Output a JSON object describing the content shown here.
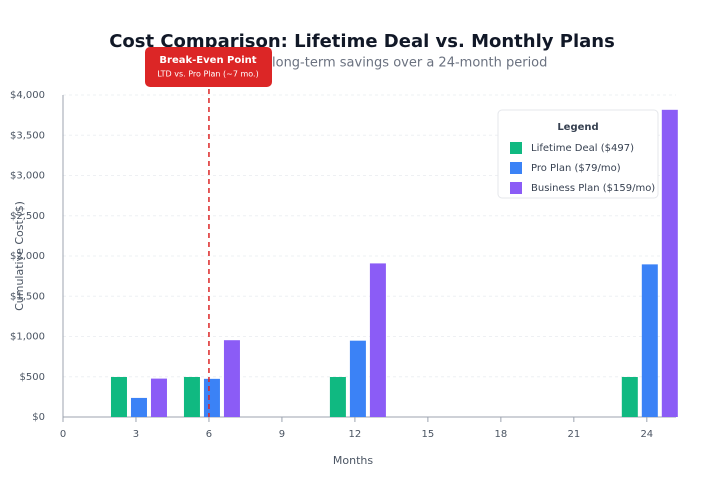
{
  "chart_data": {
    "type": "bar",
    "title": "Cost Comparison: Lifetime Deal vs. Monthly Plans",
    "subtitle": "long-term savings over a 24-month period",
    "x_label": "Months",
    "y_label": "Cumulative Cost ($)",
    "x": [
      3,
      6,
      12,
      24
    ],
    "series": [
      {
        "name": "Lifetime Deal ($497)",
        "color": "#10b981",
        "values": [
          497,
          497,
          497,
          497
        ]
      },
      {
        "name": "Pro Plan ($79/mo)",
        "color": "#3b82f6",
        "values": [
          237,
          474,
          948,
          1896
        ]
      },
      {
        "name": "Business Plan ($159/mo)",
        "color": "#8b5cf6",
        "values": [
          477,
          954,
          1908,
          3816
        ]
      }
    ],
    "xlim": [
      0,
      25.2
    ],
    "xticks": [
      0,
      3,
      6,
      9,
      12,
      15,
      18,
      21,
      24
    ],
    "ylim": [
      0,
      4000
    ],
    "yticks": [
      {
        "value": 0,
        "label": "$0"
      },
      {
        "value": 500,
        "label": "$500"
      },
      {
        "value": 1000,
        "label": "$1,000"
      },
      {
        "value": 1500,
        "label": "$1,500"
      },
      {
        "value": 2000,
        "label": "$2,000"
      },
      {
        "value": 2500,
        "label": "$2,500"
      },
      {
        "value": 3000,
        "label": "$3,000"
      },
      {
        "value": 3500,
        "label": "$3,500"
      },
      {
        "value": 4000,
        "label": "$4,000"
      }
    ],
    "grid": true,
    "legend": {
      "title": "Legend",
      "position": "top-right"
    },
    "annotation": {
      "title": "Break-Even Point",
      "text": "LTD vs. Pro Plan (~7 mo.)",
      "x": 6,
      "color": "#dc2626"
    }
  }
}
